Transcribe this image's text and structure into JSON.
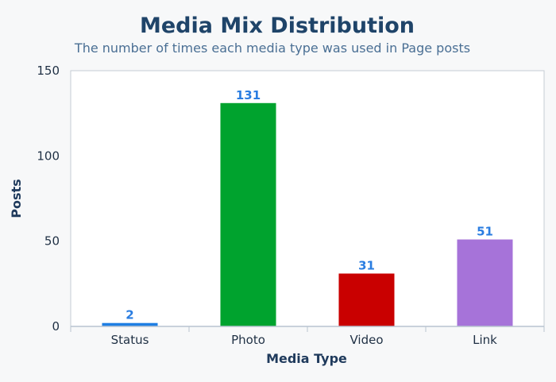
{
  "chart_data": {
    "type": "bar",
    "title": "Media Mix Distribution",
    "subtitle": "The number of times each media type was used in Page posts",
    "xlabel": "Media Type",
    "ylabel": "Posts",
    "categories": [
      "Status",
      "Photo",
      "Video",
      "Link"
    ],
    "values": [
      2,
      131,
      31,
      51
    ],
    "colors": [
      "#1e7ee3",
      "#00a32e",
      "#c90000",
      "#a673d9"
    ],
    "data_label_color": "#2a7de1",
    "ylim": [
      0,
      150
    ],
    "yticks": [
      0,
      50,
      100,
      150
    ],
    "grid": false,
    "legend": "none"
  }
}
